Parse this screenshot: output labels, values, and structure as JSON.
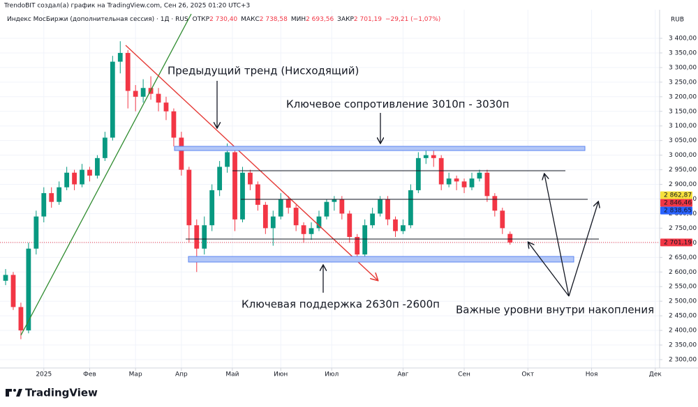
{
  "chart_data": {
    "type": "candlestick",
    "source_note": "TrendoBIT создал(а) график на TradingView.com, Сен 26, 2025 01:20 UTC+3",
    "symbol": "Индекс МосБиржи (дополнительная сессия) · 1Д · RUS",
    "ohlc_header": [
      {
        "label": "ОТКР",
        "value": "2 730,40"
      },
      {
        "label": "МАКС",
        "value": "2 738,58"
      },
      {
        "label": "МИН",
        "value": "2 693,56"
      },
      {
        "label": "ЗАКР",
        "value": "2 701,19"
      }
    ],
    "change": "−29,21 (−1,07%)",
    "currency": "RUB",
    "up_color": "#089981",
    "down_color": "#f23645",
    "x": [
      0,
      3,
      6,
      9,
      12,
      15,
      18,
      21,
      24,
      27,
      30,
      33,
      36,
      39,
      42,
      45,
      48,
      51,
      54,
      57,
      60,
      63,
      66,
      69,
      72,
      75,
      78,
      81,
      84,
      87,
      90,
      93,
      96,
      99,
      102,
      105,
      108,
      111,
      114,
      117,
      120,
      123,
      126,
      129,
      132,
      135,
      138,
      141,
      144,
      147,
      150,
      153,
      156,
      159,
      162,
      165,
      168,
      171,
      174,
      177,
      180,
      183,
      186,
      189,
      192,
      195,
      198
    ],
    "ohlc": [
      [
        2570,
        2610,
        2555,
        2590
      ],
      [
        2590,
        2600,
        2470,
        2480
      ],
      [
        2480,
        2495,
        2370,
        2400
      ],
      [
        2400,
        2700,
        2390,
        2680
      ],
      [
        2680,
        2810,
        2660,
        2790
      ],
      [
        2790,
        2890,
        2770,
        2870
      ],
      [
        2870,
        2890,
        2820,
        2840
      ],
      [
        2840,
        2910,
        2830,
        2890
      ],
      [
        2890,
        2960,
        2880,
        2940
      ],
      [
        2940,
        2950,
        2880,
        2900
      ],
      [
        2900,
        2970,
        2890,
        2950
      ],
      [
        2950,
        2960,
        2910,
        2930
      ],
      [
        2930,
        3000,
        2920,
        2990
      ],
      [
        2990,
        3080,
        2980,
        3060
      ],
      [
        3060,
        3340,
        3050,
        3320
      ],
      [
        3320,
        3390,
        3280,
        3350
      ],
      [
        3350,
        3360,
        3160,
        3220
      ],
      [
        3220,
        3240,
        3150,
        3200
      ],
      [
        3200,
        3260,
        3180,
        3230
      ],
      [
        3230,
        3270,
        3190,
        3210
      ],
      [
        3210,
        3230,
        3150,
        3180
      ],
      [
        3180,
        3200,
        3120,
        3150
      ],
      [
        3150,
        3160,
        3030,
        3060
      ],
      [
        3060,
        3080,
        2930,
        2950
      ],
      [
        2950,
        2960,
        2700,
        2760
      ],
      [
        2760,
        2780,
        2600,
        2680
      ],
      [
        2680,
        2790,
        2660,
        2760
      ],
      [
        2760,
        2900,
        2740,
        2880
      ],
      [
        2880,
        2980,
        2860,
        2960
      ],
      [
        2960,
        3040,
        2940,
        3010
      ],
      [
        3010,
        3020,
        2740,
        2780
      ],
      [
        2780,
        2960,
        2770,
        2940
      ],
      [
        2940,
        2950,
        2880,
        2900
      ],
      [
        2900,
        2910,
        2810,
        2830
      ],
      [
        2830,
        2840,
        2730,
        2750
      ],
      [
        2750,
        2810,
        2690,
        2790
      ],
      [
        2790,
        2870,
        2780,
        2850
      ],
      [
        2850,
        2860,
        2800,
        2820
      ],
      [
        2820,
        2830,
        2740,
        2760
      ],
      [
        2760,
        2770,
        2700,
        2730
      ],
      [
        2730,
        2770,
        2710,
        2750
      ],
      [
        2750,
        2810,
        2740,
        2790
      ],
      [
        2790,
        2850,
        2780,
        2840
      ],
      [
        2840,
        2860,
        2810,
        2850
      ],
      [
        2850,
        2860,
        2780,
        2800
      ],
      [
        2800,
        2810,
        2700,
        2720
      ],
      [
        2720,
        2730,
        2640,
        2660
      ],
      [
        2660,
        2780,
        2650,
        2760
      ],
      [
        2760,
        2820,
        2750,
        2800
      ],
      [
        2800,
        2860,
        2790,
        2850
      ],
      [
        2850,
        2860,
        2760,
        2780
      ],
      [
        2780,
        2790,
        2720,
        2740
      ],
      [
        2740,
        2780,
        2730,
        2760
      ],
      [
        2760,
        2900,
        2750,
        2880
      ],
      [
        2880,
        3010,
        2870,
        2990
      ],
      [
        2990,
        3020,
        2970,
        3000
      ],
      [
        3000,
        3020,
        2960,
        2990
      ],
      [
        2990,
        3000,
        2880,
        2900
      ],
      [
        2900,
        2940,
        2890,
        2920
      ],
      [
        2920,
        2930,
        2880,
        2910
      ],
      [
        2910,
        2920,
        2870,
        2890
      ],
      [
        2890,
        2940,
        2880,
        2920
      ],
      [
        2920,
        2950,
        2910,
        2940
      ],
      [
        2940,
        2950,
        2840,
        2860
      ],
      [
        2860,
        2870,
        2790,
        2810
      ],
      [
        2810,
        2820,
        2730,
        2750
      ],
      [
        2730.4,
        2738.58,
        2693.56,
        2701.19
      ]
    ],
    "xlim": [
      -2.2,
      256.7
    ],
    "xticks": [
      {
        "value": 15,
        "label": "2025"
      },
      {
        "value": 33,
        "label": "Фев"
      },
      {
        "value": 51,
        "label": "Мар"
      },
      {
        "value": 69,
        "label": "Апр"
      },
      {
        "value": 89,
        "label": "Май"
      },
      {
        "value": 108,
        "label": "Июн"
      },
      {
        "value": 128,
        "label": "Июл"
      },
      {
        "value": 156,
        "label": "Авг"
      },
      {
        "value": 180,
        "label": "Сен"
      },
      {
        "value": 205,
        "label": "Окт"
      },
      {
        "value": 230,
        "label": "Ноя"
      },
      {
        "value": 255,
        "label": "Дек"
      }
    ],
    "ylim": [
      2271.4,
      3497.8
    ],
    "yticks": [
      {
        "value": 2300,
        "label": "2 300,00"
      },
      {
        "value": 2350,
        "label": "2 350,00"
      },
      {
        "value": 2400,
        "label": "2 400,00"
      },
      {
        "value": 2450,
        "label": "2 450,00"
      },
      {
        "value": 2500,
        "label": "2 500,00"
      },
      {
        "value": 2550,
        "label": "2 550,00"
      },
      {
        "value": 2600,
        "label": "2 600,00"
      },
      {
        "value": 2650,
        "label": "2 650,00"
      },
      {
        "value": 2700,
        "label": "2 700,00"
      },
      {
        "value": 2750,
        "label": "2 750,00"
      },
      {
        "value": 2800,
        "label": "2 800,00"
      },
      {
        "value": 2850,
        "label": "2 850,00"
      },
      {
        "value": 2900,
        "label": "2 900,00"
      },
      {
        "value": 2950,
        "label": "2 950,00"
      },
      {
        "value": 3000,
        "label": "3 000,00"
      },
      {
        "value": 3050,
        "label": "3 050,00"
      },
      {
        "value": 3100,
        "label": "3 100,00"
      },
      {
        "value": 3150,
        "label": "3 150,00"
      },
      {
        "value": 3200,
        "label": "3 200,00"
      },
      {
        "value": 3250,
        "label": "3 250,00"
      },
      {
        "value": 3300,
        "label": "3 300,00"
      },
      {
        "value": 3350,
        "label": "3 350,00"
      },
      {
        "value": 3400,
        "label": "3 400,00"
      }
    ],
    "grid": true,
    "price_labels": [
      {
        "value": 2862.87,
        "label": "2 862,87",
        "color": "#f7e13b"
      },
      {
        "value": 2846.46,
        "label": "2 846,46",
        "color": "#f23645"
      },
      {
        "value": 2838.65,
        "label": "2 838,65",
        "color": "#2962ff"
      },
      {
        "value": 2701.19,
        "label": "2 701,19",
        "color": "#f23645"
      }
    ],
    "annotations": [
      "Предыдущий тренд (Нисходящий)",
      "Ключевое сопротивление 3010п - 3030п",
      "Ключевая поддержка 2630п -2600п",
      "Важные уровни внутри накопления"
    ],
    "brand": "TradingView"
  }
}
